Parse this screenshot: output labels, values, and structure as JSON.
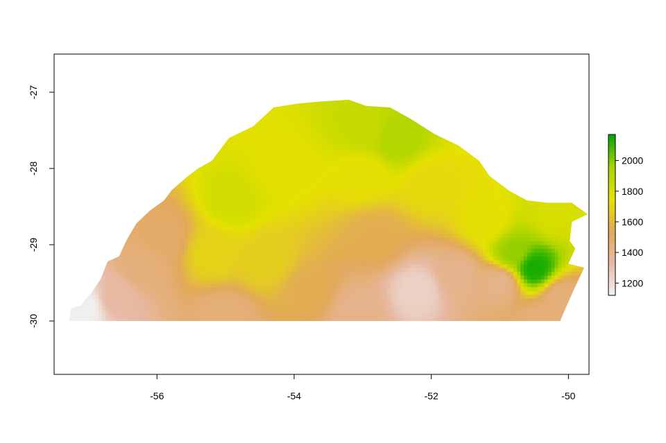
{
  "chart_data": {
    "type": "heatmap",
    "title": "",
    "xlabel": "",
    "ylabel": "",
    "xlim": [
      -57.5,
      -49.7
    ],
    "ylim": [
      -30.7,
      -26.5
    ],
    "x_ticks": [
      -56,
      -54,
      -52,
      -50
    ],
    "y_ticks": [
      -27,
      -28,
      -29,
      -30
    ],
    "x_tick_labels": [
      "-56",
      "-54",
      "-52",
      "-50"
    ],
    "y_tick_labels": [
      "-27",
      "-28",
      "-29",
      "-30"
    ],
    "grid": false,
    "legend_placement": "right",
    "colorbar": {
      "range": [
        1120,
        2170
      ],
      "ticks": [
        1200,
        1400,
        1600,
        1800,
        2000
      ],
      "tick_labels": [
        "1200",
        "1400",
        "1600",
        "1800",
        "2000"
      ],
      "colors": [
        "#f2f2f2",
        "#e7b9a3",
        "#e2a85a",
        "#e5e100",
        "#a6d300",
        "#00a600"
      ]
    },
    "region_outline_lonlat": [
      [
        -57.28,
        -30.0
      ],
      [
        -57.25,
        -29.83
      ],
      [
        -57.12,
        -29.8
      ],
      [
        -56.95,
        -29.62
      ],
      [
        -56.82,
        -29.45
      ],
      [
        -56.72,
        -29.22
      ],
      [
        -56.55,
        -29.15
      ],
      [
        -56.45,
        -28.95
      ],
      [
        -56.3,
        -28.72
      ],
      [
        -56.1,
        -28.55
      ],
      [
        -55.9,
        -28.42
      ],
      [
        -55.78,
        -28.28
      ],
      [
        -55.55,
        -28.1
      ],
      [
        -55.4,
        -28.0
      ],
      [
        -55.2,
        -27.9
      ],
      [
        -54.95,
        -27.6
      ],
      [
        -54.6,
        -27.45
      ],
      [
        -54.3,
        -27.2
      ],
      [
        -53.95,
        -27.15
      ],
      [
        -53.6,
        -27.12
      ],
      [
        -53.2,
        -27.1
      ],
      [
        -52.95,
        -27.18
      ],
      [
        -52.6,
        -27.2
      ],
      [
        -52.3,
        -27.35
      ],
      [
        -51.95,
        -27.55
      ],
      [
        -51.6,
        -27.7
      ],
      [
        -51.3,
        -27.9
      ],
      [
        -51.15,
        -28.1
      ],
      [
        -50.85,
        -28.3
      ],
      [
        -50.6,
        -28.42
      ],
      [
        -50.3,
        -28.45
      ],
      [
        -49.95,
        -28.45
      ],
      [
        -49.72,
        -28.6
      ],
      [
        -49.95,
        -28.7
      ],
      [
        -49.98,
        -28.95
      ],
      [
        -49.9,
        -29.05
      ],
      [
        -50.0,
        -29.25
      ],
      [
        -49.77,
        -29.3
      ],
      [
        -49.9,
        -29.55
      ],
      [
        -50.05,
        -29.85
      ],
      [
        -50.12,
        -30.0
      ],
      [
        -57.28,
        -30.0
      ]
    ],
    "elevation_peaks": [
      {
        "lon": -57.05,
        "lat": -29.82,
        "value": 1130
      },
      {
        "lon": -56.6,
        "lat": -29.7,
        "value": 1330
      },
      {
        "lon": -56.2,
        "lat": -29.3,
        "value": 1450
      },
      {
        "lon": -55.9,
        "lat": -28.9,
        "value": 1500
      },
      {
        "lon": -54.9,
        "lat": -28.4,
        "value": 1820
      },
      {
        "lon": -55.2,
        "lat": -29.1,
        "value": 1700
      },
      {
        "lon": -54.4,
        "lat": -29.2,
        "value": 1680
      },
      {
        "lon": -54.2,
        "lat": -28.0,
        "value": 1760
      },
      {
        "lon": -53.8,
        "lat": -29.6,
        "value": 1560
      },
      {
        "lon": -53.0,
        "lat": -27.45,
        "value": 1850
      },
      {
        "lon": -52.5,
        "lat": -27.6,
        "value": 1920
      },
      {
        "lon": -53.0,
        "lat": -28.1,
        "value": 1740
      },
      {
        "lon": -52.0,
        "lat": -28.2,
        "value": 1720
      },
      {
        "lon": -51.2,
        "lat": -28.7,
        "value": 1740
      },
      {
        "lon": -52.8,
        "lat": -28.9,
        "value": 1560
      },
      {
        "lon": -52.2,
        "lat": -29.6,
        "value": 1240
      },
      {
        "lon": -51.6,
        "lat": -29.4,
        "value": 1400
      },
      {
        "lon": -51.0,
        "lat": -29.5,
        "value": 1400
      },
      {
        "lon": -50.5,
        "lat": -29.3,
        "value": 2140
      },
      {
        "lon": -50.8,
        "lat": -29.1,
        "value": 1980
      },
      {
        "lon": -50.2,
        "lat": -28.6,
        "value": 1800
      },
      {
        "lon": -50.1,
        "lat": -29.7,
        "value": 1450
      },
      {
        "lon": -50.4,
        "lat": -30.0,
        "value": 1450
      },
      {
        "lon": -53.1,
        "lat": -29.9,
        "value": 1400
      },
      {
        "lon": -55.0,
        "lat": -29.95,
        "value": 1450
      }
    ]
  }
}
